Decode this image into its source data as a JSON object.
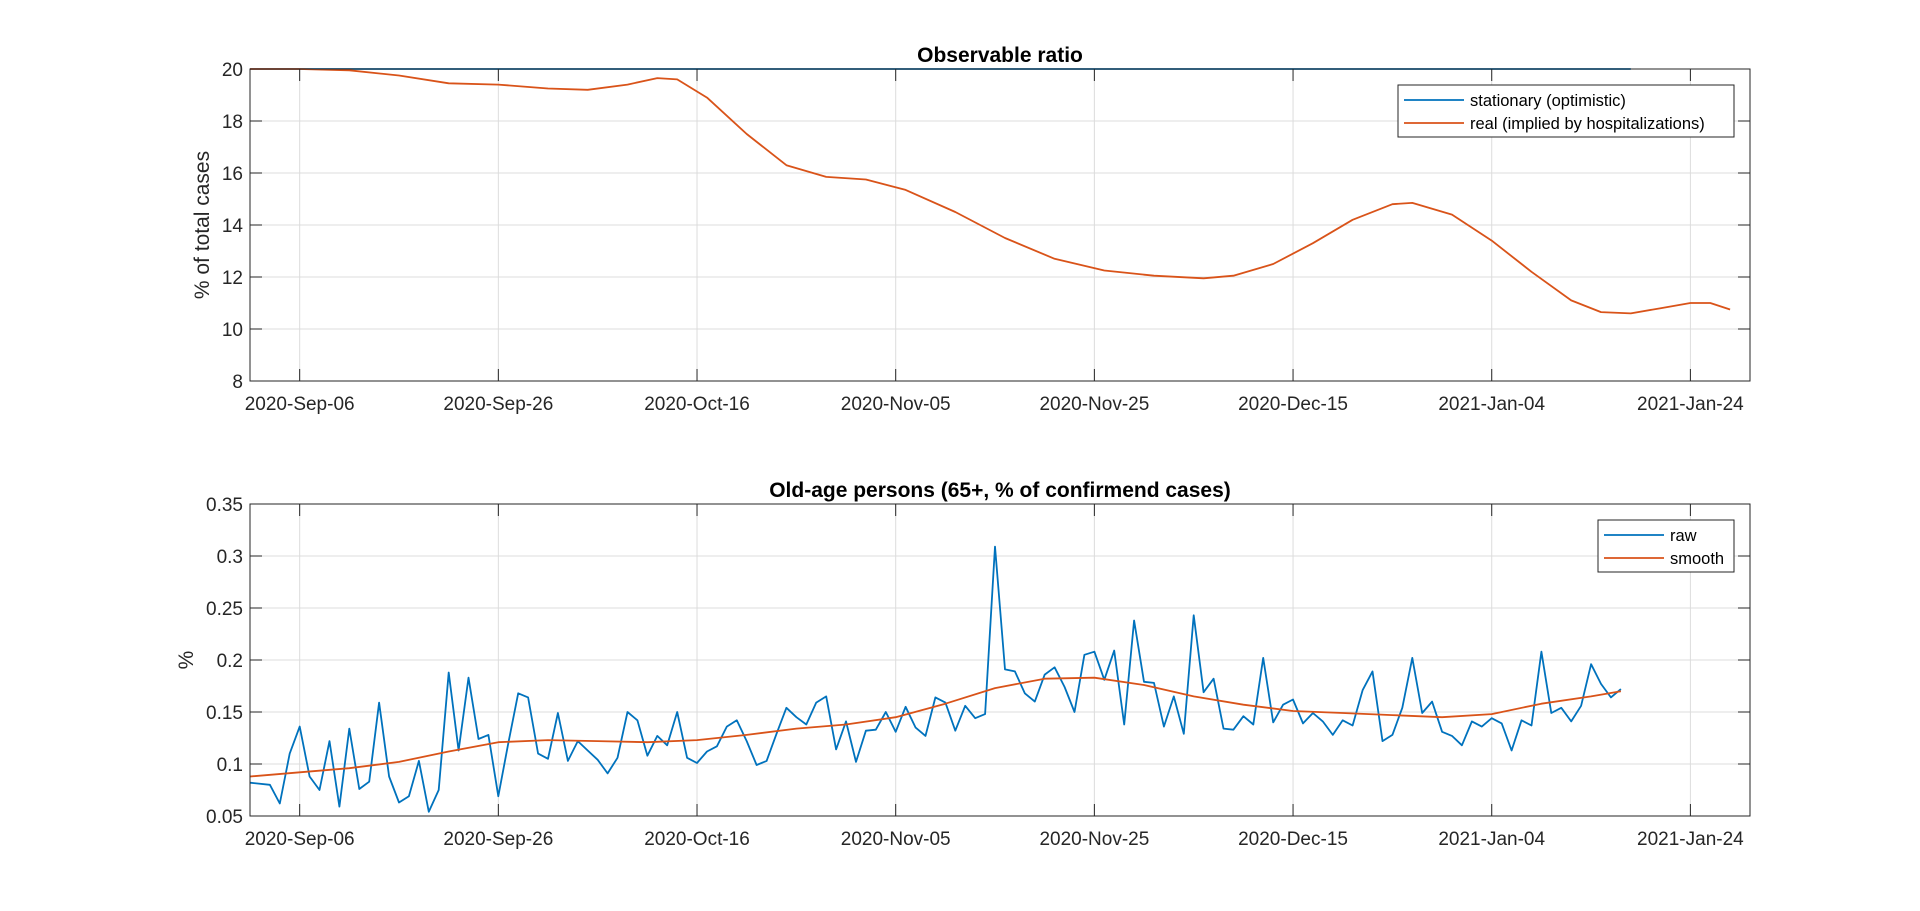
{
  "colors": {
    "blue": "#0072bd",
    "orange": "#d95319"
  },
  "chart_data": [
    {
      "type": "line",
      "title": "Observable ratio",
      "xlabel": "",
      "ylabel": "% of total cases",
      "x_type": "date",
      "xlim": [
        "2020-09-01",
        "2021-01-30"
      ],
      "ylim": [
        8,
        20
      ],
      "x_ticks": [
        "2020-09-06",
        "2020-09-26",
        "2020-10-16",
        "2020-11-05",
        "2020-11-25",
        "2020-12-15",
        "2021-01-04",
        "2021-01-24"
      ],
      "x_tick_labels": [
        "2020-Sep-06",
        "2020-Sep-26",
        "2020-Oct-16",
        "2020-Nov-05",
        "2020-Nov-25",
        "2020-Dec-15",
        "2021-Jan-04",
        "2021-Jan-24"
      ],
      "y_ticks": [
        8,
        10,
        12,
        14,
        16,
        18,
        20
      ],
      "y_tick_labels": [
        "8",
        "10",
        "12",
        "14",
        "16",
        "18",
        "20"
      ],
      "grid": true,
      "legend": "top-right",
      "series": [
        {
          "name": "stationary (optimistic)",
          "color": "#0072bd",
          "points": [
            [
              "2020-09-01",
              20
            ],
            [
              "2021-01-18",
              20
            ]
          ]
        },
        {
          "name": "real (implied by hospitalizations)",
          "color": "#d95319",
          "points": [
            [
              "2020-09-01",
              20.0
            ],
            [
              "2020-09-06",
              20.0
            ],
            [
              "2020-09-11",
              19.95
            ],
            [
              "2020-09-16",
              19.75
            ],
            [
              "2020-09-21",
              19.45
            ],
            [
              "2020-09-26",
              19.4
            ],
            [
              "2020-10-01",
              19.25
            ],
            [
              "2020-10-05",
              19.2
            ],
            [
              "2020-10-09",
              19.4
            ],
            [
              "2020-10-12",
              19.65
            ],
            [
              "2020-10-14",
              19.6
            ],
            [
              "2020-10-17",
              18.9
            ],
            [
              "2020-10-21",
              17.5
            ],
            [
              "2020-10-25",
              16.3
            ],
            [
              "2020-10-29",
              15.85
            ],
            [
              "2020-11-02",
              15.75
            ],
            [
              "2020-11-06",
              15.35
            ],
            [
              "2020-11-11",
              14.5
            ],
            [
              "2020-11-16",
              13.5
            ],
            [
              "2020-11-21",
              12.7
            ],
            [
              "2020-11-26",
              12.25
            ],
            [
              "2020-12-01",
              12.05
            ],
            [
              "2020-12-06",
              11.95
            ],
            [
              "2020-12-09",
              12.05
            ],
            [
              "2020-12-13",
              12.5
            ],
            [
              "2020-12-17",
              13.3
            ],
            [
              "2020-12-21",
              14.2
            ],
            [
              "2020-12-25",
              14.8
            ],
            [
              "2020-12-27",
              14.85
            ],
            [
              "2020-12-31",
              14.4
            ],
            [
              "2021-01-04",
              13.4
            ],
            [
              "2021-01-08",
              12.2
            ],
            [
              "2021-01-12",
              11.1
            ],
            [
              "2021-01-15",
              10.65
            ],
            [
              "2021-01-18",
              10.6
            ],
            [
              "2021-01-21",
              10.8
            ],
            [
              "2021-01-24",
              11.0
            ],
            [
              "2021-01-26",
              11.0
            ],
            [
              "2021-01-28",
              10.75
            ]
          ]
        }
      ]
    },
    {
      "type": "line",
      "title": "Old-age persons (65+, % of confirmend cases)",
      "xlabel": "",
      "ylabel": "%",
      "x_type": "date",
      "xlim": [
        "2020-09-01",
        "2021-01-30"
      ],
      "ylim": [
        0.05,
        0.35
      ],
      "x_ticks": [
        "2020-09-06",
        "2020-09-26",
        "2020-10-16",
        "2020-11-05",
        "2020-11-25",
        "2020-12-15",
        "2021-01-04",
        "2021-01-24"
      ],
      "x_tick_labels": [
        "2020-Sep-06",
        "2020-Sep-26",
        "2020-Oct-16",
        "2020-Nov-05",
        "2020-Nov-25",
        "2020-Dec-15",
        "2021-Jan-04",
        "2021-Jan-24"
      ],
      "y_ticks": [
        0.05,
        0.1,
        0.15,
        0.2,
        0.25,
        0.3,
        0.35
      ],
      "y_tick_labels": [
        "0.05",
        "0.1",
        "0.15",
        "0.2",
        "0.25",
        "0.3",
        "0.35"
      ],
      "grid": true,
      "legend": "top-right",
      "series": [
        {
          "name": "raw",
          "color": "#0072bd",
          "points": [
            [
              "2020-09-01",
              0.082
            ],
            [
              "2020-09-03",
              0.08
            ],
            [
              "2020-09-04",
              0.062
            ],
            [
              "2020-09-05",
              0.11
            ],
            [
              "2020-09-06",
              0.136
            ],
            [
              "2020-09-07",
              0.088
            ],
            [
              "2020-09-08",
              0.075
            ],
            [
              "2020-09-09",
              0.122
            ],
            [
              "2020-09-10",
              0.059
            ],
            [
              "2020-09-11",
              0.134
            ],
            [
              "2020-09-12",
              0.076
            ],
            [
              "2020-09-13",
              0.083
            ],
            [
              "2020-09-14",
              0.159
            ],
            [
              "2020-09-15",
              0.088
            ],
            [
              "2020-09-16",
              0.063
            ],
            [
              "2020-09-17",
              0.069
            ],
            [
              "2020-09-18",
              0.103
            ],
            [
              "2020-09-19",
              0.054
            ],
            [
              "2020-09-20",
              0.075
            ],
            [
              "2020-09-21",
              0.188
            ],
            [
              "2020-09-22",
              0.113
            ],
            [
              "2020-09-23",
              0.183
            ],
            [
              "2020-09-24",
              0.124
            ],
            [
              "2020-09-25",
              0.128
            ],
            [
              "2020-09-26",
              0.069
            ],
            [
              "2020-09-27",
              0.12
            ],
            [
              "2020-09-28",
              0.168
            ],
            [
              "2020-09-29",
              0.164
            ],
            [
              "2020-09-30",
              0.11
            ],
            [
              "2020-10-01",
              0.105
            ],
            [
              "2020-10-02",
              0.149
            ],
            [
              "2020-10-03",
              0.103
            ],
            [
              "2020-10-04",
              0.122
            ],
            [
              "2020-10-05",
              0.113
            ],
            [
              "2020-10-06",
              0.104
            ],
            [
              "2020-10-07",
              0.091
            ],
            [
              "2020-10-08",
              0.106
            ],
            [
              "2020-10-09",
              0.15
            ],
            [
              "2020-10-10",
              0.142
            ],
            [
              "2020-10-11",
              0.108
            ],
            [
              "2020-10-12",
              0.127
            ],
            [
              "2020-10-13",
              0.118
            ],
            [
              "2020-10-14",
              0.15
            ],
            [
              "2020-10-15",
              0.106
            ],
            [
              "2020-10-16",
              0.101
            ],
            [
              "2020-10-17",
              0.112
            ],
            [
              "2020-10-18",
              0.117
            ],
            [
              "2020-10-19",
              0.136
            ],
            [
              "2020-10-20",
              0.142
            ],
            [
              "2020-10-21",
              0.122
            ],
            [
              "2020-10-22",
              0.099
            ],
            [
              "2020-10-23",
              0.103
            ],
            [
              "2020-10-24",
              0.129
            ],
            [
              "2020-10-25",
              0.154
            ],
            [
              "2020-10-26",
              0.145
            ],
            [
              "2020-10-27",
              0.138
            ],
            [
              "2020-10-28",
              0.159
            ],
            [
              "2020-10-29",
              0.165
            ],
            [
              "2020-10-30",
              0.114
            ],
            [
              "2020-10-31",
              0.141
            ],
            [
              "2020-11-01",
              0.102
            ],
            [
              "2020-11-02",
              0.132
            ],
            [
              "2020-11-03",
              0.133
            ],
            [
              "2020-11-04",
              0.15
            ],
            [
              "2020-11-05",
              0.131
            ],
            [
              "2020-11-06",
              0.155
            ],
            [
              "2020-11-07",
              0.135
            ],
            [
              "2020-11-08",
              0.127
            ],
            [
              "2020-11-09",
              0.164
            ],
            [
              "2020-11-10",
              0.159
            ],
            [
              "2020-11-11",
              0.132
            ],
            [
              "2020-11-12",
              0.156
            ],
            [
              "2020-11-13",
              0.144
            ],
            [
              "2020-11-14",
              0.148
            ],
            [
              "2020-11-15",
              0.309
            ],
            [
              "2020-11-16",
              0.191
            ],
            [
              "2020-11-17",
              0.189
            ],
            [
              "2020-11-18",
              0.168
            ],
            [
              "2020-11-19",
              0.16
            ],
            [
              "2020-11-20",
              0.186
            ],
            [
              "2020-11-21",
              0.193
            ],
            [
              "2020-11-22",
              0.174
            ],
            [
              "2020-11-23",
              0.15
            ],
            [
              "2020-11-24",
              0.205
            ],
            [
              "2020-11-25",
              0.208
            ],
            [
              "2020-11-26",
              0.181
            ],
            [
              "2020-11-27",
              0.209
            ],
            [
              "2020-11-28",
              0.138
            ],
            [
              "2020-11-29",
              0.238
            ],
            [
              "2020-11-30",
              0.179
            ],
            [
              "2020-12-01",
              0.178
            ],
            [
              "2020-12-02",
              0.136
            ],
            [
              "2020-12-03",
              0.165
            ],
            [
              "2020-12-04",
              0.129
            ],
            [
              "2020-12-05",
              0.243
            ],
            [
              "2020-12-06",
              0.169
            ],
            [
              "2020-12-07",
              0.182
            ],
            [
              "2020-12-08",
              0.134
            ],
            [
              "2020-12-09",
              0.133
            ],
            [
              "2020-12-10",
              0.146
            ],
            [
              "2020-12-11",
              0.138
            ],
            [
              "2020-12-12",
              0.202
            ],
            [
              "2020-12-13",
              0.14
            ],
            [
              "2020-12-14",
              0.157
            ],
            [
              "2020-12-15",
              0.162
            ],
            [
              "2020-12-16",
              0.139
            ],
            [
              "2020-12-17",
              0.149
            ],
            [
              "2020-12-18",
              0.141
            ],
            [
              "2020-12-19",
              0.128
            ],
            [
              "2020-12-20",
              0.142
            ],
            [
              "2020-12-21",
              0.137
            ],
            [
              "2020-12-22",
              0.171
            ],
            [
              "2020-12-23",
              0.189
            ],
            [
              "2020-12-24",
              0.122
            ],
            [
              "2020-12-25",
              0.128
            ],
            [
              "2020-12-26",
              0.154
            ],
            [
              "2020-12-27",
              0.202
            ],
            [
              "2020-12-28",
              0.149
            ],
            [
              "2020-12-29",
              0.16
            ],
            [
              "2020-12-30",
              0.131
            ],
            [
              "2020-12-31",
              0.127
            ],
            [
              "2021-01-01",
              0.118
            ],
            [
              "2021-01-02",
              0.141
            ],
            [
              "2021-01-03",
              0.136
            ],
            [
              "2021-01-04",
              0.144
            ],
            [
              "2021-01-05",
              0.139
            ],
            [
              "2021-01-06",
              0.113
            ],
            [
              "2021-01-07",
              0.142
            ],
            [
              "2021-01-08",
              0.137
            ],
            [
              "2021-01-09",
              0.208
            ],
            [
              "2021-01-10",
              0.149
            ],
            [
              "2021-01-11",
              0.154
            ],
            [
              "2021-01-12",
              0.141
            ],
            [
              "2021-01-13",
              0.156
            ],
            [
              "2021-01-14",
              0.196
            ],
            [
              "2021-01-15",
              0.177
            ],
            [
              "2021-01-16",
              0.164
            ],
            [
              "2021-01-17",
              0.172
            ]
          ]
        },
        {
          "name": "smooth",
          "color": "#d95319",
          "points": [
            [
              "2020-09-01",
              0.088
            ],
            [
              "2020-09-06",
              0.092
            ],
            [
              "2020-09-11",
              0.096
            ],
            [
              "2020-09-16",
              0.102
            ],
            [
              "2020-09-21",
              0.112
            ],
            [
              "2020-09-26",
              0.121
            ],
            [
              "2020-10-01",
              0.123
            ],
            [
              "2020-10-06",
              0.122
            ],
            [
              "2020-10-11",
              0.121
            ],
            [
              "2020-10-16",
              0.123
            ],
            [
              "2020-10-21",
              0.128
            ],
            [
              "2020-10-26",
              0.134
            ],
            [
              "2020-10-31",
              0.138
            ],
            [
              "2020-11-05",
              0.145
            ],
            [
              "2020-11-10",
              0.158
            ],
            [
              "2020-11-15",
              0.173
            ],
            [
              "2020-11-20",
              0.182
            ],
            [
              "2020-11-25",
              0.183
            ],
            [
              "2020-11-30",
              0.176
            ],
            [
              "2020-12-05",
              0.165
            ],
            [
              "2020-12-10",
              0.157
            ],
            [
              "2020-12-15",
              0.151
            ],
            [
              "2020-12-20",
              0.149
            ],
            [
              "2020-12-25",
              0.147
            ],
            [
              "2020-12-30",
              0.145
            ],
            [
              "2021-01-04",
              0.148
            ],
            [
              "2021-01-09",
              0.158
            ],
            [
              "2021-01-14",
              0.165
            ],
            [
              "2021-01-17",
              0.17
            ]
          ]
        }
      ]
    }
  ]
}
